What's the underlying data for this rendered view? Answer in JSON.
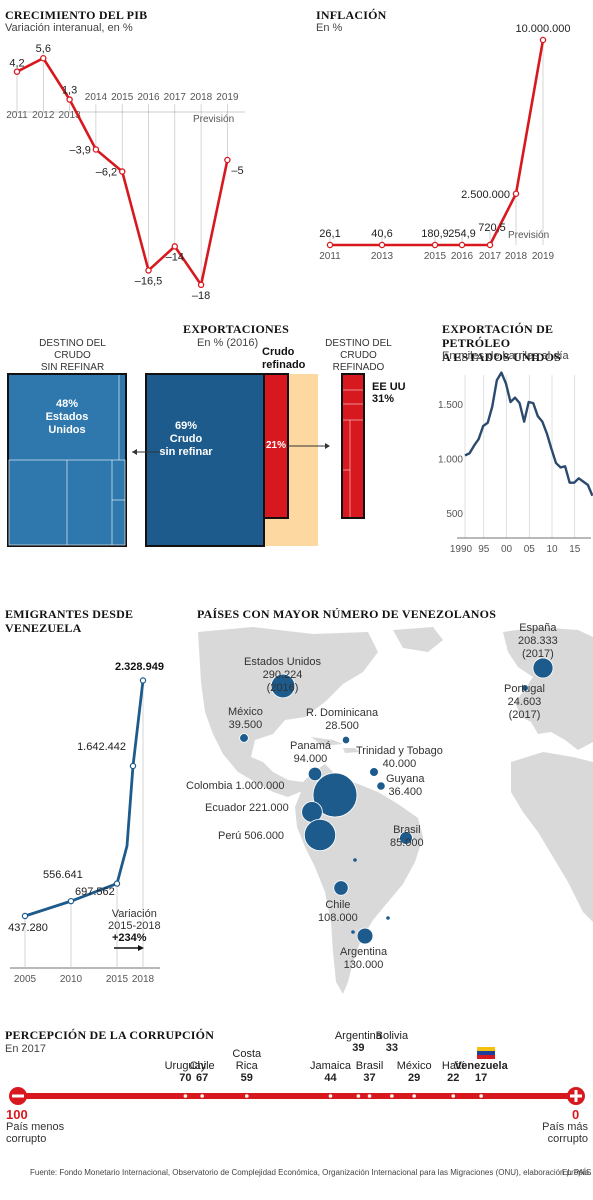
{
  "pib": {
    "title": "CRECIMIENTO DEL PIB",
    "subtitle": "Variación interanual, en %",
    "forecast_label": "Previsión"
  },
  "inflacion": {
    "title": "INFLACIÓN",
    "subtitle": "En %",
    "forecast_label": "Previsión"
  },
  "exportaciones": {
    "title": "EXPORTACIONES",
    "subtitle": "En % (2016)",
    "left_header": "DESTINO DEL CRUDO\nSIN REFINAR",
    "right_header": "DESTINO DEL CRUDO\nREFINADO",
    "refined_header": "Crudo\nrefinado",
    "left_box_pct": "48%",
    "left_box_label": "Estados\nUnidos",
    "main_pct": "69%",
    "main_label": "Crudo\nsin refinar",
    "refined_pct": "21%",
    "right_label": "EE UU\n31%"
  },
  "petroleo": {
    "title": "EXPORTACIÓN DE PETRÓLEO\nA ESTADOS UNIDOS",
    "subtitle": "En miles de barriles al día"
  },
  "emigrantes": {
    "title": "EMIGRANTES DESDE\nVENEZUELA",
    "variation_label": "Variación\n2015-2018",
    "variation_value": "+234%"
  },
  "mapa": {
    "title": "PAÍSES CON MAYOR NÚMERO DE VENEZOLANOS",
    "countries": [
      {
        "label": "Estados Unidos\n290.224\n(2016)",
        "value": 290224
      },
      {
        "label": "México\n39.500",
        "value": 39500
      },
      {
        "label": "R. Dominicana\n28.500",
        "value": 28500
      },
      {
        "label": "Panamá\n94.000",
        "value": 94000
      },
      {
        "label": "Trinidad y Tobago\n40.000",
        "value": 40000
      },
      {
        "label": "Guyana\n36.400",
        "value": 36400
      },
      {
        "label": "Colombia 1.000.000",
        "value": 1000000
      },
      {
        "label": "Ecuador 221.000",
        "value": 221000
      },
      {
        "label": "Perú 506.000",
        "value": 506000
      },
      {
        "label": "Brasil\n85.000",
        "value": 85000
      },
      {
        "label": "Chile\n108.000",
        "value": 108000
      },
      {
        "label": "Argentina\n130.000",
        "value": 130000
      },
      {
        "label": "España\n208.333\n(2017)",
        "value": 208333
      },
      {
        "label": "Portugal\n24.603\n(2017)",
        "value": 24603
      }
    ]
  },
  "corrupcion": {
    "title": "PERCEPCIÓN DE LA CORRUPCIÓN",
    "subtitle": "En 2017",
    "left_end_value": "100",
    "left_end_label": "País menos\ncorrupto",
    "right_end_value": "0",
    "right_end_label": "País más\ncorrupto",
    "countries": [
      {
        "name": "Uruguay",
        "score": "70"
      },
      {
        "name": "Chile",
        "score": "67"
      },
      {
        "name": "Costa\nRica",
        "score": "59"
      },
      {
        "name": "Jamaica",
        "score": "44"
      },
      {
        "name": "Argentina",
        "score": "39"
      },
      {
        "name": "Brasil",
        "score": "37"
      },
      {
        "name": "Bolivia",
        "score": "33"
      },
      {
        "name": "México",
        "score": "29"
      },
      {
        "name": "Haití",
        "score": "22"
      },
      {
        "name": "Venezuela",
        "score": "17"
      }
    ]
  },
  "footer": {
    "source": "Fuente: Fondo Monetario Internacional, Observatorio de Complejidad Económica, Organización Internacional para las Migraciones (ONU), elaboración propia.",
    "brand": "EL PAÍS"
  },
  "colors": {
    "red": "#d7191f",
    "blue": "#1d5b8c",
    "light_blue": "#2e78ad",
    "peach": "#fdd8a0",
    "map_land": "#d9d9d9"
  },
  "chart_data": [
    {
      "type": "line",
      "title": "CRECIMIENTO DEL PIB",
      "subtitle": "Variación interanual, en %",
      "x": [
        "2011",
        "2012",
        "2013",
        "2014",
        "2015",
        "2016",
        "2017",
        "2018",
        "2019"
      ],
      "values": [
        4.2,
        5.6,
        1.3,
        -3.9,
        -6.2,
        -16.5,
        -14,
        -18,
        -5
      ],
      "labels": [
        "4,2",
        "5,6",
        "1,3",
        "–3,9",
        "–6,2",
        "–16,5",
        "–14",
        "–18",
        "–5"
      ],
      "ylim": [
        -20,
        7
      ]
    },
    {
      "type": "line",
      "title": "INFLACIÓN",
      "subtitle": "En %",
      "x": [
        "2011",
        "2013",
        "2015",
        "2016",
        "2017",
        "2018",
        "2019"
      ],
      "values": [
        26.1,
        40.6,
        180.9,
        254.9,
        720.5,
        2500000,
        10000000
      ],
      "labels": [
        "26,1",
        "40,6",
        "180,9",
        "254,9",
        "720,5",
        "2.500.000",
        "10.000.000"
      ],
      "ylim": [
        0,
        10000000
      ]
    },
    {
      "type": "line",
      "title": "EXPORTACIÓN DE PETRÓLEO A ESTADOS UNIDOS",
      "subtitle": "En miles de barriles al día",
      "x": [
        1990,
        1991,
        1992,
        1993,
        1994,
        1995,
        1996,
        1997,
        1998,
        1999,
        2000,
        2001,
        2002,
        2003,
        2004,
        2005,
        2006,
        2007,
        2008,
        2009,
        2010,
        2011,
        2012,
        2013,
        2014,
        2015,
        2016,
        2017,
        2018
      ],
      "values": [
        1030,
        1050,
        1120,
        1180,
        1300,
        1330,
        1480,
        1720,
        1790,
        1690,
        1520,
        1560,
        1510,
        1340,
        1520,
        1510,
        1390,
        1340,
        1230,
        1090,
        960,
        920,
        930,
        780,
        780,
        820,
        790,
        760,
        660
      ],
      "y_ticks": [
        "500",
        "1.000",
        "1.500"
      ],
      "x_ticks": [
        "1990",
        "95",
        "00",
        "05",
        "10",
        "15"
      ],
      "ylim": [
        300,
        2000
      ]
    },
    {
      "type": "line",
      "title": "EMIGRANTES DESDE VENEZUELA",
      "x": [
        "2005",
        "2010",
        "2015",
        "2016",
        "2017",
        "2018"
      ],
      "values": [
        437280,
        556641,
        697562,
        1000000,
        1642442,
        2328949
      ],
      "labels": [
        "437.280",
        "556.641",
        "697.562",
        "",
        "1.642.442",
        "2.328.949"
      ],
      "x_ticks": [
        "2005",
        "2010",
        "2015",
        "2018"
      ]
    },
    {
      "type": "bar",
      "title": "EXPORTACIONES",
      "subtitle": "En % (2016)",
      "categories": [
        "Crudo sin refinar",
        "Crudo refinado"
      ],
      "values": [
        69,
        21
      ],
      "breakdown": {
        "Crudo sin refinar → Estados Unidos": 48,
        "Crudo refinado → EE UU": 31
      }
    }
  ]
}
